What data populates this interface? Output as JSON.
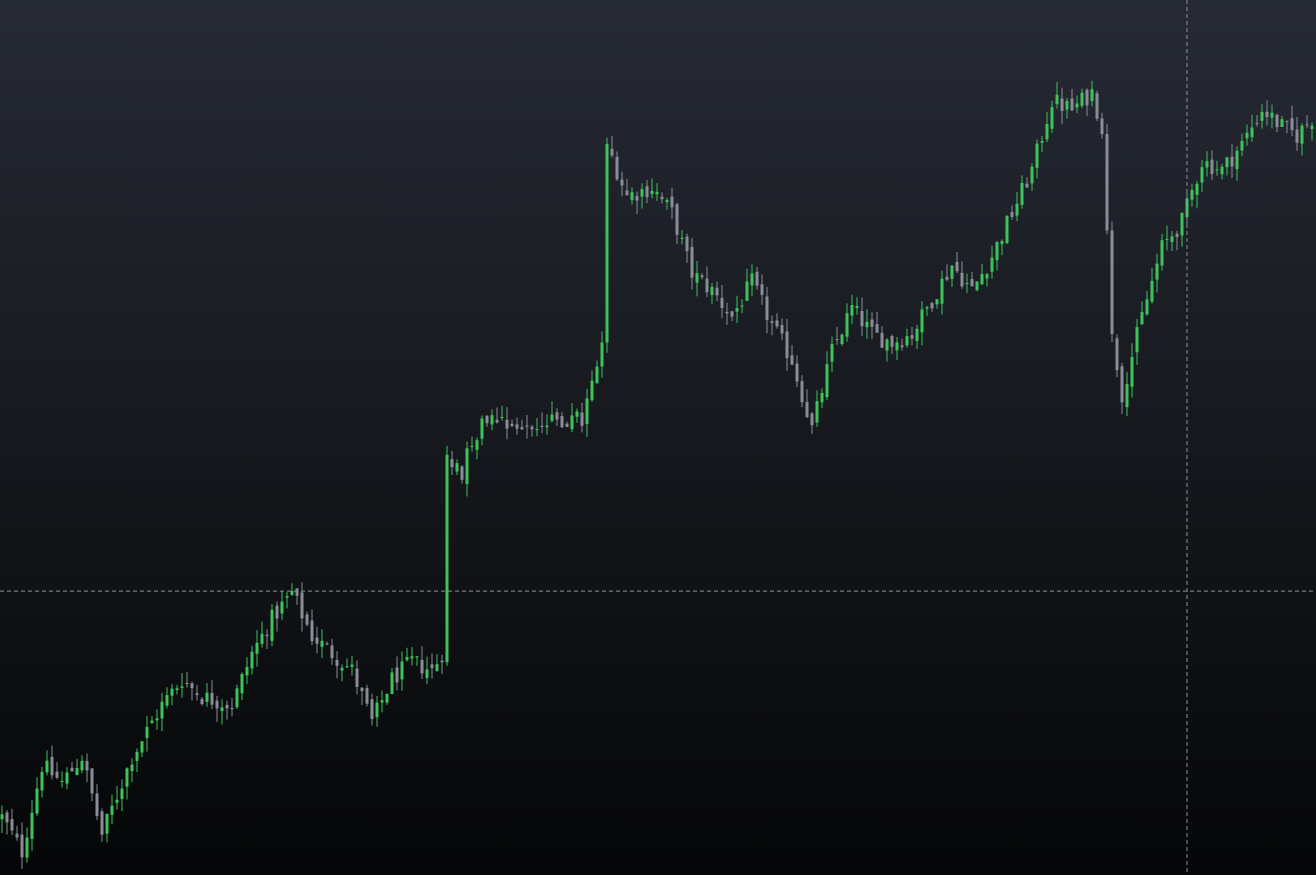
{
  "chart_data": {
    "type": "candlestick",
    "title": "",
    "xlabel": "",
    "ylabel": "",
    "ylim": [
      0,
      100
    ],
    "grid": false,
    "legend": "none",
    "crosshair": {
      "x_bar_index": 237,
      "y_value": 32.2
    },
    "colors": {
      "up": "#3ec35a",
      "down": "#8a8d98",
      "crosshair": "#8d9099",
      "background_top": "#262a34",
      "background_bottom": "#050607"
    },
    "anchors": [
      [
        0,
        6
      ],
      [
        4,
        2
      ],
      [
        8,
        12
      ],
      [
        12,
        10
      ],
      [
        16,
        13
      ],
      [
        20,
        4
      ],
      [
        26,
        13
      ],
      [
        32,
        19
      ],
      [
        36,
        22
      ],
      [
        40,
        20
      ],
      [
        46,
        19
      ],
      [
        50,
        25
      ],
      [
        54,
        29
      ],
      [
        58,
        32
      ],
      [
        62,
        27
      ],
      [
        66,
        25
      ],
      [
        70,
        23
      ],
      [
        74,
        17
      ],
      [
        78,
        22
      ],
      [
        82,
        24
      ],
      [
        86,
        23
      ],
      [
        88,
        25
      ],
      [
        89,
        48
      ],
      [
        92,
        46
      ],
      [
        94,
        50
      ],
      [
        98,
        53
      ],
      [
        104,
        51
      ],
      [
        112,
        52
      ],
      [
        116,
        52
      ],
      [
        120,
        60
      ],
      [
        121,
        84
      ],
      [
        125,
        78
      ],
      [
        130,
        79
      ],
      [
        134,
        76
      ],
      [
        138,
        69
      ],
      [
        142,
        67
      ],
      [
        146,
        64
      ],
      [
        150,
        68
      ],
      [
        154,
        63
      ],
      [
        158,
        59
      ],
      [
        162,
        51
      ],
      [
        166,
        60
      ],
      [
        170,
        65
      ],
      [
        174,
        62
      ],
      [
        178,
        61
      ],
      [
        182,
        62
      ],
      [
        186,
        66
      ],
      [
        190,
        70
      ],
      [
        194,
        67
      ],
      [
        198,
        71
      ],
      [
        202,
        76
      ],
      [
        206,
        81
      ],
      [
        210,
        89
      ],
      [
        214,
        88
      ],
      [
        218,
        90
      ],
      [
        220,
        86
      ],
      [
        222,
        62
      ],
      [
        224,
        55
      ],
      [
        228,
        64
      ],
      [
        232,
        72
      ],
      [
        236,
        75
      ],
      [
        240,
        82
      ],
      [
        244,
        81
      ],
      [
        248,
        84
      ],
      [
        252,
        88
      ],
      [
        256,
        86
      ],
      [
        259,
        85
      ],
      [
        262,
        87
      ]
    ]
  }
}
